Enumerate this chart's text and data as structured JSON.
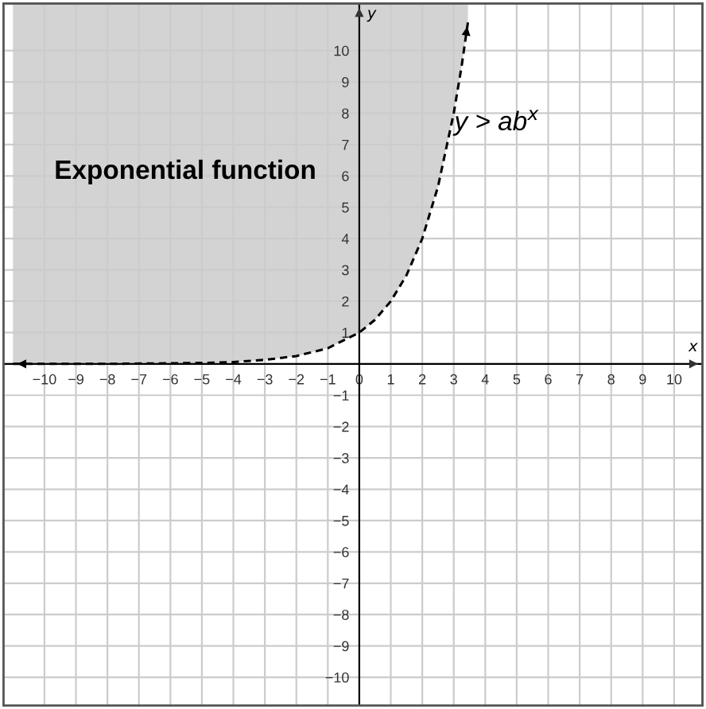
{
  "chart_data": {
    "type": "line",
    "xlabel": "x",
    "ylabel": "y",
    "x": [
      -11,
      -8,
      -6,
      -5,
      -4,
      -3,
      -2,
      -1,
      0,
      0.5,
      1,
      1.5,
      2,
      2.5,
      3,
      3.25,
      3.45
    ],
    "series": [
      {
        "color": "#000000",
        "values": [
          0,
          0,
          0.02,
          0.03,
          0.06,
          0.13,
          0.25,
          0.5,
          1,
          1.41,
          2,
          2.83,
          4,
          5.66,
          8,
          9.5,
          10.9
        ],
        "line_style": "dashed"
      }
    ],
    "xlim": [
      -11.3,
      10.9
    ],
    "ylim": [
      -10.9,
      11.5
    ],
    "xticks": [
      -10,
      -9,
      -8,
      -7,
      -6,
      -5,
      -4,
      -3,
      -2,
      -1,
      0,
      1,
      2,
      3,
      4,
      5,
      6,
      7,
      8,
      9,
      10
    ],
    "yticks": [
      -10,
      -9,
      -8,
      -7,
      -6,
      -5,
      -4,
      -3,
      -2,
      -1,
      {
        "value": 0,
        "label": null
      },
      1,
      2,
      3,
      4,
      5,
      6,
      7,
      8,
      9,
      10
    ],
    "grid": true,
    "marker": "none",
    "annotations": [
      "Exponential function",
      "y > ab$^{x}$"
    ]
  }
}
